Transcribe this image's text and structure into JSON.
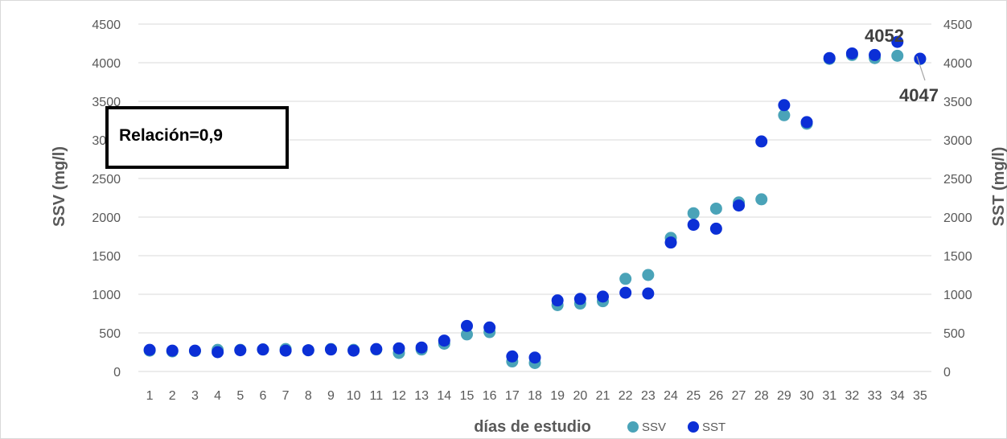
{
  "chart_data": {
    "type": "scatter",
    "title": "",
    "xlabel": "días de estudio",
    "ylabel_left": "SSV (mg/l)",
    "ylabel_right": "SST (mg/l)",
    "ylim": [
      0,
      4500
    ],
    "yticks": [
      0,
      500,
      1000,
      1500,
      2000,
      2500,
      3000,
      3500,
      4000,
      4500
    ],
    "x": [
      1,
      2,
      3,
      4,
      5,
      6,
      7,
      8,
      9,
      10,
      11,
      12,
      13,
      14,
      15,
      16,
      17,
      18,
      19,
      20,
      21,
      22,
      23,
      24,
      25,
      26,
      27,
      28,
      29,
      30,
      31,
      32,
      33,
      34,
      35
    ],
    "grid": "horizontal",
    "legend_position": "bottom",
    "series": [
      {
        "name": "SSV",
        "color": "#4AA3B8",
        "values": [
          270,
          260,
          265,
          280,
          280,
          285,
          290,
          275,
          290,
          280,
          285,
          240,
          285,
          360,
          480,
          510,
          130,
          110,
          860,
          880,
          910,
          1200,
          1250,
          1730,
          2050,
          2110,
          2190,
          2230,
          3320,
          3210,
          4050,
          4100,
          4060,
          4090,
          4047
        ]
      },
      {
        "name": "SST",
        "color": "#0B2FD6",
        "values": [
          280,
          270,
          270,
          250,
          275,
          285,
          270,
          275,
          285,
          270,
          290,
          300,
          310,
          400,
          590,
          570,
          195,
          180,
          920,
          940,
          970,
          1020,
          1010,
          1670,
          1900,
          1850,
          2150,
          2980,
          3450,
          3230,
          4060,
          4120,
          4100,
          4270,
          4052
        ]
      }
    ],
    "annotations": [
      {
        "text": "4052"
      },
      {
        "text": "4047"
      }
    ],
    "textbox": "Relación=0,9"
  }
}
